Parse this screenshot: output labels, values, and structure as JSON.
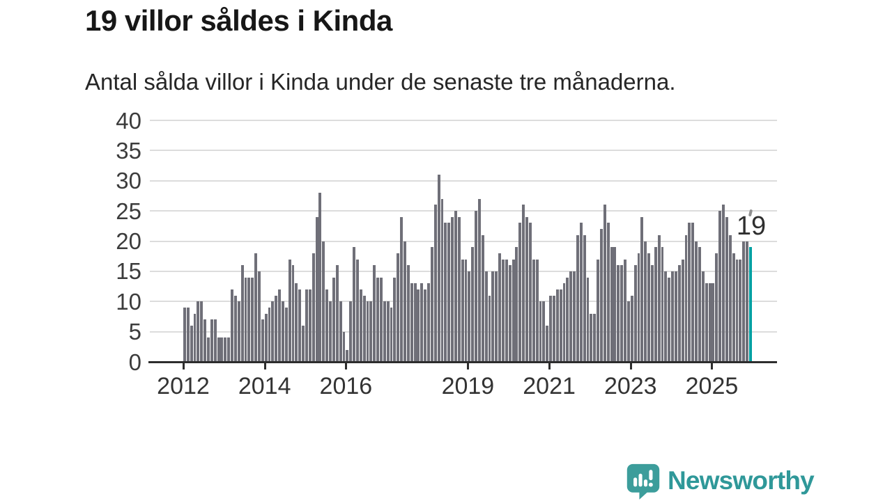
{
  "header": {
    "title": "19 villor såldes i Kinda",
    "subtitle": "Antal sålda villor i Kinda under de senaste tre månaderna."
  },
  "chart_data": {
    "type": "bar",
    "title": "19 villor såldes i Kinda",
    "subtitle": "Antal sålda villor i Kinda under de senaste tre månaderna.",
    "frequency": "monthly",
    "start_month": "2012-01",
    "end_month": "2025-12",
    "values": [
      9,
      9,
      6,
      8,
      10,
      10,
      7,
      4,
      7,
      7,
      4,
      4,
      4,
      4,
      12,
      11,
      10,
      16,
      14,
      14,
      14,
      18,
      15,
      7,
      8,
      9,
      10,
      11,
      12,
      10,
      9,
      17,
      16,
      13,
      12,
      6,
      12,
      12,
      18,
      24,
      28,
      20,
      12,
      10,
      14,
      16,
      10,
      5,
      2,
      10,
      19,
      17,
      12,
      11,
      10,
      10,
      16,
      14,
      14,
      10,
      10,
      9,
      14,
      18,
      24,
      20,
      16,
      13,
      13,
      12,
      13,
      12,
      13,
      19,
      26,
      31,
      27,
      23,
      23,
      24,
      25,
      24,
      17,
      17,
      15,
      19,
      25,
      27,
      21,
      15,
      11,
      15,
      15,
      18,
      17,
      17,
      16,
      17,
      19,
      23,
      26,
      24,
      23,
      17,
      17,
      10,
      10,
      6,
      11,
      11,
      12,
      12,
      13,
      14,
      15,
      15,
      21,
      23,
      21,
      14,
      8,
      8,
      17,
      22,
      26,
      23,
      19,
      19,
      16,
      16,
      17,
      10,
      11,
      16,
      18,
      24,
      20,
      18,
      16,
      19,
      21,
      19,
      15,
      14,
      15,
      15,
      16,
      17,
      21,
      23,
      23,
      20,
      19,
      15,
      13,
      13,
      13,
      18,
      25,
      26,
      24,
      21,
      18,
      17,
      17,
      20,
      20,
      19
    ],
    "highlight": {
      "index": 167,
      "value": 19,
      "label": "19"
    },
    "x_tick_years": [
      2012,
      2014,
      2016,
      2019,
      2021,
      2023,
      2025
    ],
    "y_ticks": [
      0,
      5,
      10,
      15,
      20,
      25,
      30,
      35,
      40
    ],
    "ylim": [
      0,
      40
    ],
    "grid": "horizontal",
    "legend": "none",
    "colors": {
      "bar": "#6f6f78",
      "highlight": "#00a1a3",
      "gridline": "#dcdcdc",
      "axis": "#2d2d2d"
    }
  },
  "logo": {
    "wordmark": "Newsworthy",
    "icon": "speech-bubble-bar-chart-icon",
    "color": "#2f9899"
  }
}
